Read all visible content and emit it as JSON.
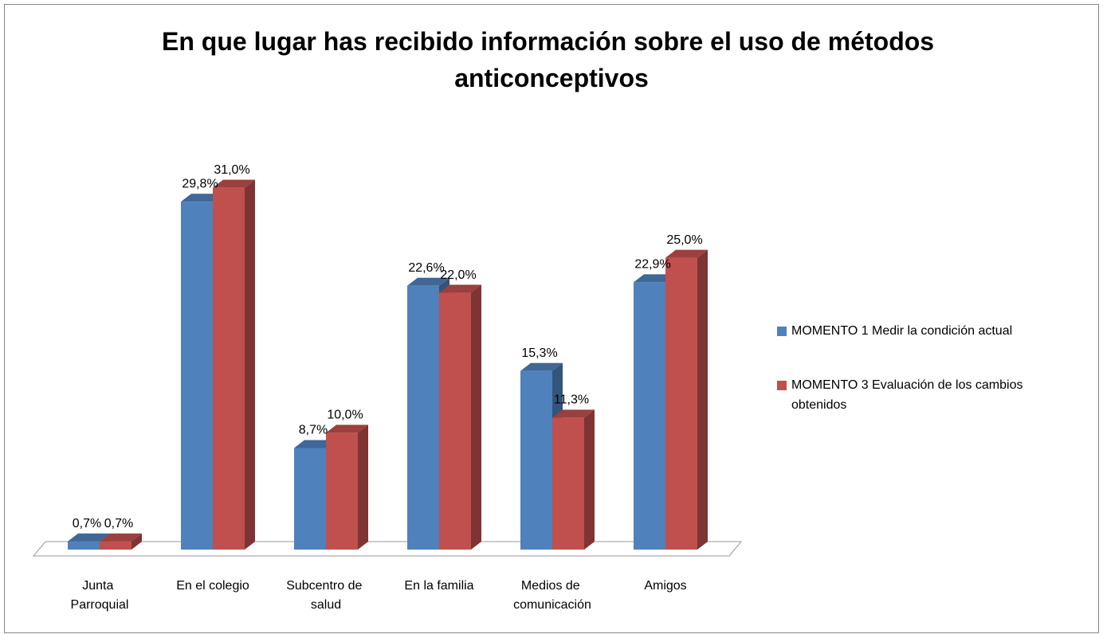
{
  "chart_data": {
    "type": "bar3d",
    "title": "En que lugar has recibido información sobre el uso de métodos anticonceptivos",
    "categories": [
      "Junta Parroquial",
      "En el colegio",
      "Subcentro de salud",
      "En la familia",
      "Medios de comunicación",
      "Amigos"
    ],
    "series": [
      {
        "name": "MOMENTO 1 Medir la condición actual",
        "color": "#4f81bd",
        "values": [
          0.7,
          29.8,
          8.7,
          22.6,
          15.3,
          22.9
        ],
        "value_labels": [
          "0,7%",
          "29,8%",
          "8,7%",
          "22,6%",
          "15,3%",
          "22,9%"
        ]
      },
      {
        "name": "MOMENTO 3 Evaluación de los cambios obtenidos",
        "color": "#c0504d",
        "values": [
          0.7,
          31.0,
          10.0,
          22.0,
          11.3,
          25.0
        ],
        "value_labels": [
          "0,7%",
          "31,0%",
          "10,0%",
          "22,0%",
          "11,3%",
          "25,0%"
        ]
      }
    ],
    "ylim": [
      0,
      35
    ],
    "legend": "right"
  }
}
